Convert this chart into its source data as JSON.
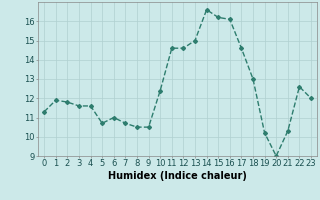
{
  "x": [
    0,
    1,
    2,
    3,
    4,
    5,
    6,
    7,
    8,
    9,
    10,
    11,
    12,
    13,
    14,
    15,
    16,
    17,
    18,
    19,
    20,
    21,
    22,
    23
  ],
  "y": [
    11.3,
    11.9,
    11.8,
    11.6,
    11.6,
    10.7,
    11.0,
    10.7,
    10.5,
    10.5,
    12.4,
    14.6,
    14.6,
    15.0,
    16.6,
    16.2,
    16.1,
    14.6,
    13.0,
    10.2,
    9.0,
    10.3,
    12.6,
    12.0
  ],
  "line_color": "#2e7d6e",
  "marker": "D",
  "marker_size": 2.0,
  "bg_color": "#cce9e9",
  "grid_color": "#b0d0d0",
  "xlabel": "Humidex (Indice chaleur)",
  "xlim": [
    -0.5,
    23.5
  ],
  "ylim": [
    9,
    17
  ],
  "yticks": [
    9,
    10,
    11,
    12,
    13,
    14,
    15,
    16
  ],
  "xticks": [
    0,
    1,
    2,
    3,
    4,
    5,
    6,
    7,
    8,
    9,
    10,
    11,
    12,
    13,
    14,
    15,
    16,
    17,
    18,
    19,
    20,
    21,
    22,
    23
  ],
  "xlabel_fontsize": 7,
  "tick_fontsize": 6,
  "line_width": 1.0
}
